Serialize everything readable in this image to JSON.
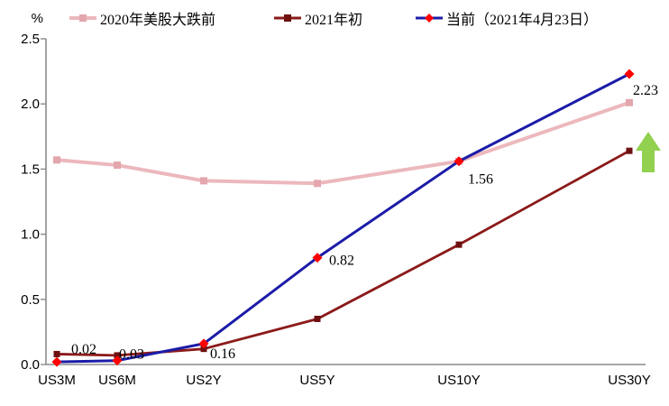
{
  "legend": {
    "items": [
      {
        "label": "2020年美股大跌前",
        "line_color": "#ECB8BD",
        "marker": "square",
        "marker_color": "#E3A6AC"
      },
      {
        "label": "2021年初",
        "line_color": "#8B1A1A",
        "marker": "square",
        "marker_color": "#6E1010"
      },
      {
        "label": "当前（2021年4月23日）",
        "line_color": "#1B1CA8",
        "marker": "diamond",
        "marker_color": "#FE0000"
      }
    ]
  },
  "chart_data": {
    "type": "line",
    "title": "",
    "ylabel": "%",
    "xlabel": "",
    "categories": [
      "US3M",
      "US6M",
      "US2Y",
      "US5Y",
      "US10Y",
      "US30Y"
    ],
    "y_ticks": [
      "0.0",
      "0.5",
      "1.0",
      "1.5",
      "2.0",
      "2.5"
    ],
    "ylim": [
      0,
      2.5
    ],
    "grid": false,
    "legend_position": "top",
    "axis_color": "#8A8A8A",
    "series": [
      {
        "name": "2020年美股大跌前",
        "values": [
          1.57,
          1.53,
          1.41,
          1.39,
          1.56,
          2.01
        ],
        "color": "#ECB8BD",
        "marker": "square",
        "marker_color": "#E3A6AC",
        "line_width": 4
      },
      {
        "name": "2021年初",
        "values": [
          0.08,
          0.07,
          0.12,
          0.35,
          0.92,
          1.64
        ],
        "color": "#8B1A1A",
        "marker": "square",
        "marker_color": "#6E1010",
        "line_width": 2.8
      },
      {
        "name": "当前（2021年4月23日）",
        "values": [
          0.02,
          0.03,
          0.16,
          0.82,
          1.56,
          2.23
        ],
        "point_labels": [
          "0.02",
          "0.03",
          "0.16",
          "0.82",
          "1.56",
          "2.23"
        ],
        "color": "#1B1CA8",
        "marker": "diamond",
        "marker_color": "#FE0000",
        "line_width": 3
      }
    ],
    "annotations": [
      {
        "type": "up-arrow",
        "color": "#92D050",
        "near": "US30Y 2021年初 endpoint"
      }
    ]
  }
}
